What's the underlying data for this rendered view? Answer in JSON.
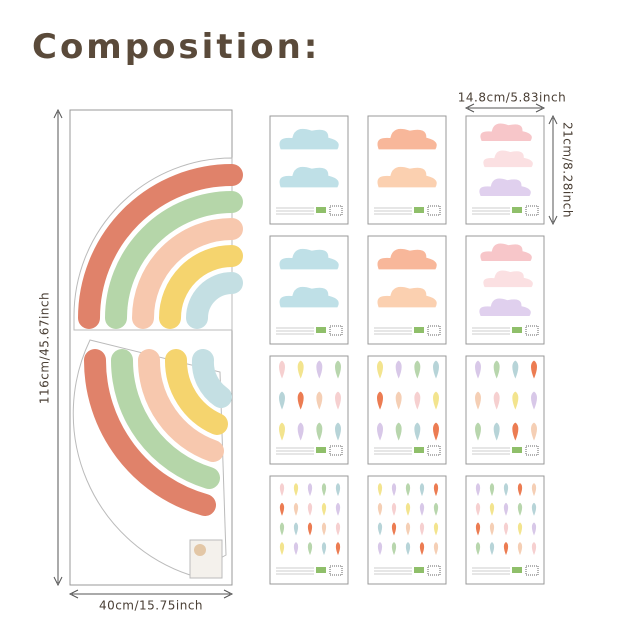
{
  "header": {
    "title": "Composition:"
  },
  "dimensions": {
    "height": "116cm/45.67inch",
    "width": "40cm/15.75inch",
    "sheet_width": "14.8cm/5.83inch",
    "sheet_height": "21cm/8.28inch"
  }
}
